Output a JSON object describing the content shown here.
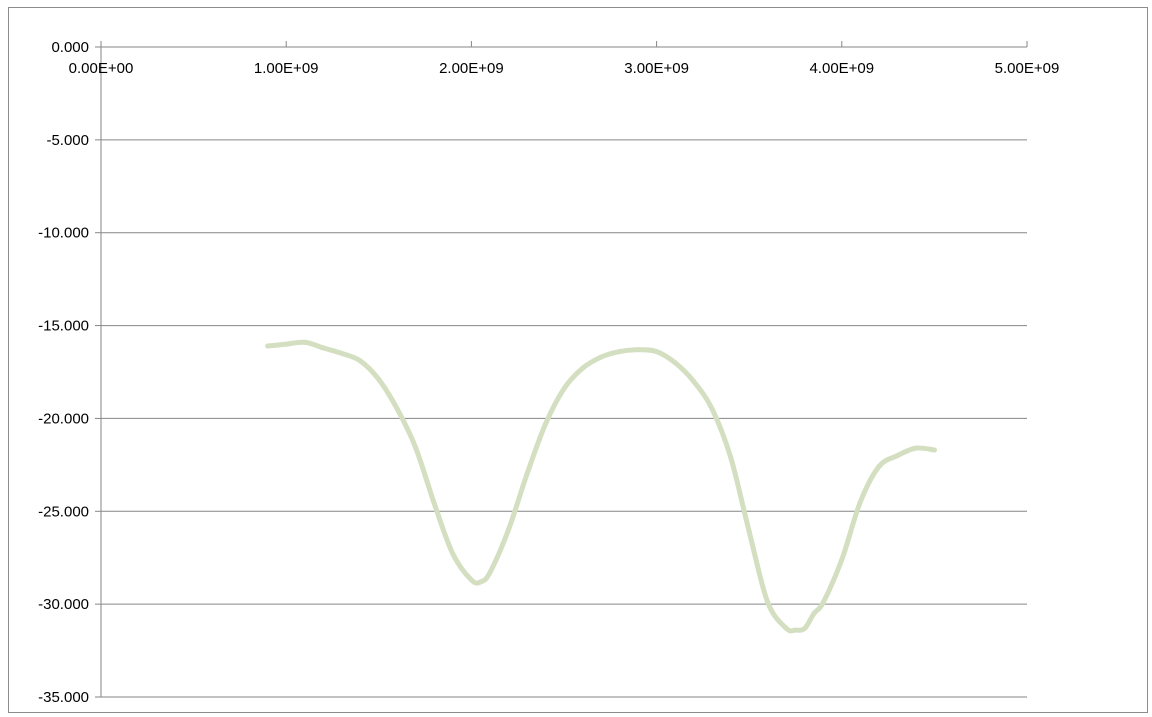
{
  "chart_data": {
    "type": "scatter",
    "title": "",
    "xlabel": "",
    "ylabel": "",
    "xlim": [
      0,
      5000000000
    ],
    "ylim": [
      -35,
      0
    ],
    "x_axis_position": "top",
    "grid": "horizontal",
    "legend": "none",
    "x_ticks": [
      {
        "value": 0,
        "label": "0.00E+00"
      },
      {
        "value": 1000000000,
        "label": "1.00E+09"
      },
      {
        "value": 2000000000,
        "label": "2.00E+09"
      },
      {
        "value": 3000000000,
        "label": "3.00E+09"
      },
      {
        "value": 4000000000,
        "label": "4.00E+09"
      },
      {
        "value": 5000000000,
        "label": "5.00E+09"
      }
    ],
    "y_ticks": [
      {
        "value": 0,
        "label": "0.000"
      },
      {
        "value": -5,
        "label": "-5.000"
      },
      {
        "value": -10,
        "label": "-10.000"
      },
      {
        "value": -15,
        "label": "-15.000"
      },
      {
        "value": -20,
        "label": "-20.000"
      },
      {
        "value": -25,
        "label": "-25.000"
      },
      {
        "value": -30,
        "label": "-30.000"
      },
      {
        "value": -35,
        "label": "-35.000"
      }
    ],
    "series": [
      {
        "color": "#d3dfc0",
        "x": [
          900000000,
          1000000000,
          1100000000,
          1200000000,
          1300000000,
          1400000000,
          1500000000,
          1600000000,
          1700000000,
          1800000000,
          1900000000,
          2000000000,
          2050000000,
          2100000000,
          2200000000,
          2300000000,
          2400000000,
          2500000000,
          2600000000,
          2700000000,
          2800000000,
          2900000000,
          3000000000,
          3100000000,
          3200000000,
          3300000000,
          3400000000,
          3500000000,
          3600000000,
          3700000000,
          3750000000,
          3800000000,
          3850000000,
          3900000000,
          4000000000,
          4100000000,
          4200000000,
          4300000000,
          4400000000,
          4500000000
        ],
        "y": [
          -16.1,
          -16.0,
          -15.9,
          -16.2,
          -16.5,
          -16.9,
          -17.9,
          -19.5,
          -21.6,
          -24.6,
          -27.3,
          -28.7,
          -28.8,
          -28.3,
          -26.0,
          -23.0,
          -20.3,
          -18.4,
          -17.3,
          -16.7,
          -16.4,
          -16.3,
          -16.4,
          -17.0,
          -18.0,
          -19.5,
          -22.1,
          -26.1,
          -29.9,
          -31.3,
          -31.4,
          -31.3,
          -30.5,
          -29.9,
          -27.6,
          -24.5,
          -22.6,
          -22.0,
          -21.6,
          -21.7
        ]
      }
    ]
  }
}
